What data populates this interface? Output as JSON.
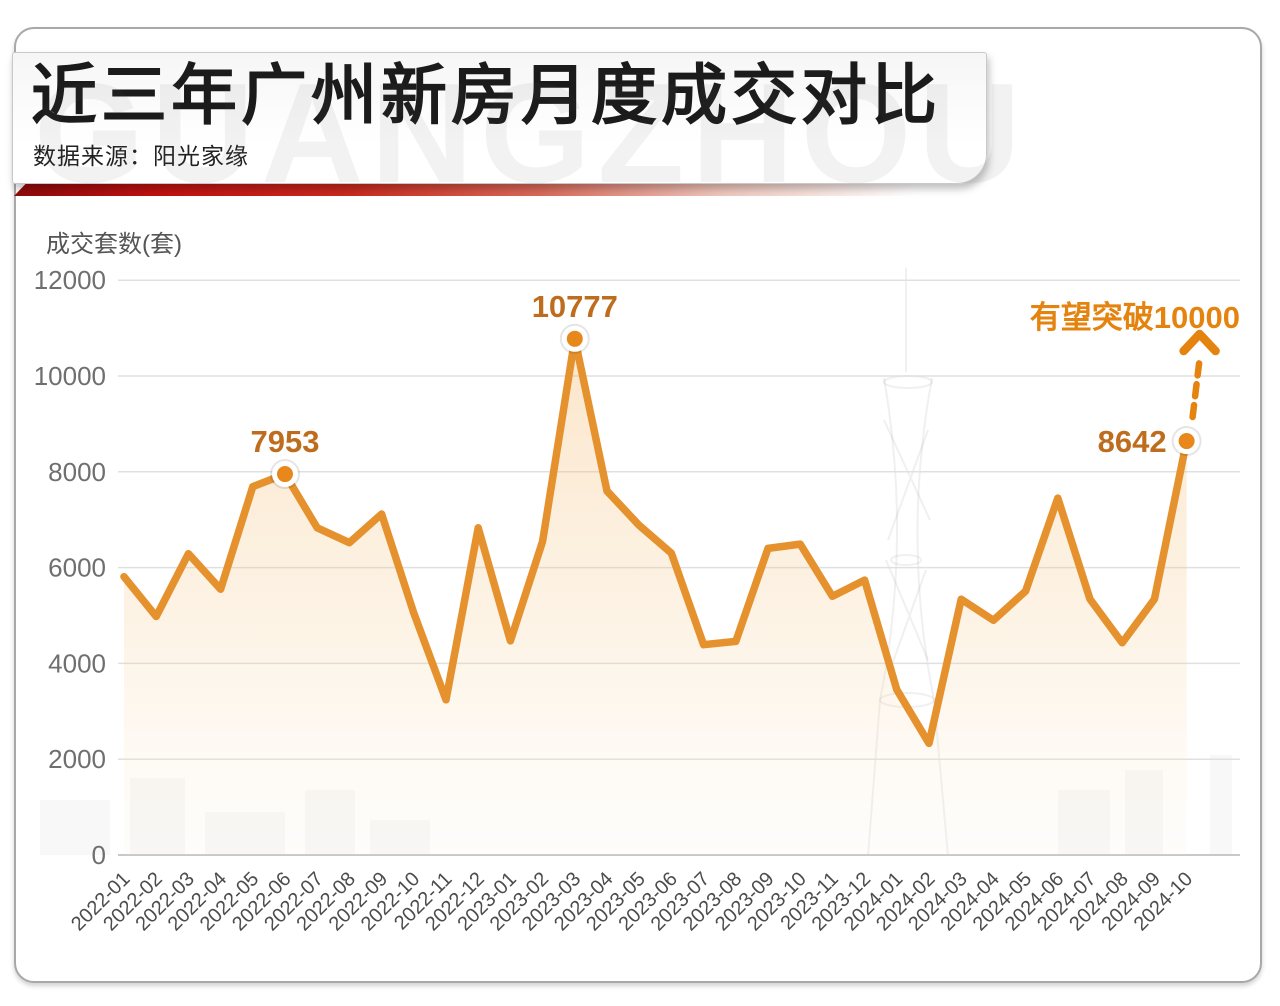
{
  "page": {
    "watermark": "GUANGZHOU"
  },
  "header": {
    "title": "近三年广州新房月度成交对比",
    "source": "数据来源：阳光家缘"
  },
  "chart_data": {
    "type": "line",
    "title": "近三年广州新房月度成交对比",
    "xlabel": "",
    "ylabel": "成交套数(套)",
    "ylim": [
      0,
      12000
    ],
    "yticks": [
      0,
      2000,
      4000,
      6000,
      8000,
      10000,
      12000
    ],
    "grid": true,
    "legend": "none",
    "x": [
      "2022-01",
      "2022-02",
      "2022-03",
      "2022-04",
      "2022-05",
      "2022-06",
      "2022-07",
      "2022-08",
      "2022-09",
      "2022-10",
      "2022-11",
      "2022-12",
      "2023-01",
      "2023-02",
      "2023-03",
      "2023-04",
      "2023-05",
      "2023-06",
      "2023-07",
      "2023-08",
      "2023-09",
      "2023-10",
      "2023-11",
      "2023-12",
      "2024-01",
      "2024-02",
      "2024-03",
      "2024-04",
      "2024-05",
      "2024-06",
      "2024-07",
      "2024-08",
      "2024-09",
      "2024-10"
    ],
    "series": [
      {
        "name": "成交套数",
        "values": [
          5810,
          4980,
          6290,
          5550,
          7690,
          7953,
          6830,
          6520,
          7120,
          5050,
          3240,
          6830,
          4470,
          6550,
          10777,
          7600,
          6880,
          6300,
          4390,
          4460,
          6400,
          6490,
          5400,
          5740,
          3450,
          2330,
          5340,
          4900,
          5510,
          7450,
          5340,
          4430,
          5340,
          8642
        ]
      }
    ],
    "labeled_points": [
      {
        "x": "2022-06",
        "value": 7953,
        "label": "7953",
        "label_side": "above"
      },
      {
        "x": "2023-03",
        "value": 10777,
        "label": "10777",
        "label_side": "above"
      },
      {
        "x": "2024-10",
        "value": 8642,
        "label": "8642",
        "label_side": "left"
      }
    ],
    "annotation": {
      "text": "有望突破10000",
      "arrow": "dashed-up"
    },
    "colors": {
      "line": "#E5912D",
      "dot_fill": "#E8871C",
      "point_label": "#BE6D1E",
      "annotation": "#E5830F",
      "ribbon_red": "#C01111",
      "grid": "#E0E0E0",
      "axis_text": "#6F6F6F"
    }
  }
}
